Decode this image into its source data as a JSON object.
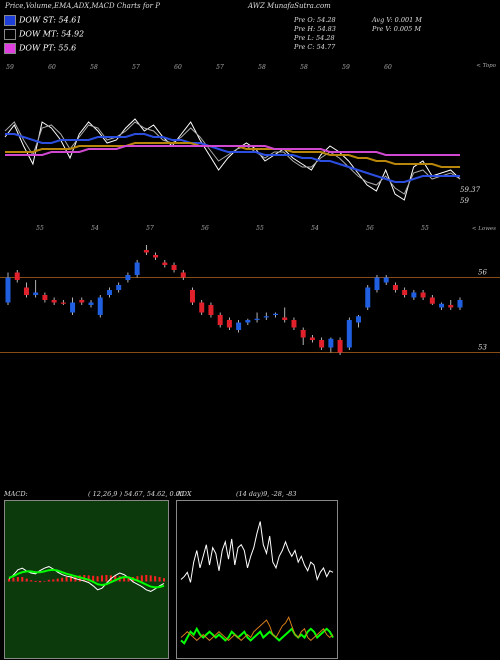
{
  "header": {
    "left": "Price,Volume,EMA,ADX,MACD Charts for P",
    "right": "AWZ MunafaSutra.com"
  },
  "indicators": [
    {
      "label": "DOW ST: 54.61",
      "color": "#1e3fd8"
    },
    {
      "label": "DOW MT: 54.92",
      "color": "#000000"
    },
    {
      "label": "DOW PT: 55.6",
      "color": "#e040e0"
    }
  ],
  "quote": {
    "prev_open": "Pre O: 54.28",
    "prev_high": "Pre H: 54.83",
    "prev_low": "Pre L: 54.28",
    "prev_close": "Pre C: 54.77",
    "avg_vol": "Avg V: 0.001 M",
    "prev_vol": "Pre V: 0.005 M"
  },
  "chart_data": [
    {
      "type": "line",
      "name": "price-ema",
      "ylim": [
        58.5,
        62.5
      ],
      "y_labels": [
        {
          "text": "59.37",
          "value": 59.37
        },
        {
          "text": "59",
          "value": 59.0
        }
      ],
      "corner_label": "< Topo",
      "top_tick_labels": [
        "59",
        "60",
        "58",
        "57",
        "60",
        "57",
        "58",
        "58",
        "59",
        "60"
      ],
      "series": [
        {
          "color": "#ffffff",
          "values": [
            61.1,
            61.5,
            60.8,
            60.2,
            61.6,
            61.4,
            61.0,
            60.4,
            61.2,
            61.6,
            61.3,
            60.9,
            61.0,
            61.4,
            61.7,
            61.3,
            61.5,
            61.1,
            60.8,
            61.2,
            61.6,
            61.0,
            60.5,
            60.0,
            60.4,
            60.7,
            60.9,
            60.7,
            60.3,
            60.5,
            60.7,
            60.4,
            60.2,
            60.0,
            60.5,
            60.8,
            60.6,
            60.3,
            59.9,
            59.5,
            59.3,
            60.0,
            59.2,
            59.0,
            60.1,
            60.3,
            59.8,
            59.9,
            60.0,
            59.7
          ]
        },
        {
          "color": "#aaaaaa",
          "values": [
            61.3,
            61.6,
            61.0,
            60.5,
            61.4,
            61.5,
            61.2,
            60.7,
            61.1,
            61.5,
            61.4,
            61.0,
            61.1,
            61.3,
            61.6,
            61.4,
            61.3,
            61.0,
            60.9,
            61.1,
            61.4,
            61.1,
            60.7,
            60.3,
            60.5,
            60.7,
            60.8,
            60.6,
            60.4,
            60.6,
            60.6,
            60.3,
            60.1,
            60.1,
            60.4,
            60.6,
            60.4,
            60.1,
            59.8,
            59.6,
            59.5,
            59.8,
            59.4,
            59.2,
            59.9,
            60.0,
            59.7,
            59.8,
            59.9,
            59.7
          ]
        },
        {
          "color": "#2b4de0",
          "values": [
            61.2,
            61.2,
            61.1,
            61.0,
            60.9,
            60.9,
            61.0,
            61.0,
            61.0,
            61.0,
            61.1,
            61.1,
            61.1,
            61.1,
            61.2,
            61.2,
            61.1,
            61.1,
            61.0,
            61.0,
            60.9,
            60.9,
            60.8,
            60.7,
            60.6,
            60.6,
            60.6,
            60.6,
            60.5,
            60.5,
            60.5,
            60.5,
            60.4,
            60.4,
            60.3,
            60.3,
            60.2,
            60.1,
            60.0,
            59.9,
            59.8,
            59.7,
            59.6,
            59.6,
            59.7,
            59.8,
            59.8,
            59.8,
            59.8,
            59.8
          ]
        },
        {
          "color": "#b8860b",
          "values": [
            60.6,
            60.6,
            60.6,
            60.6,
            60.7,
            60.7,
            60.7,
            60.7,
            60.8,
            60.8,
            60.8,
            60.8,
            60.8,
            60.8,
            60.9,
            60.9,
            60.9,
            60.9,
            60.9,
            60.9,
            60.9,
            60.8,
            60.8,
            60.8,
            60.8,
            60.8,
            60.7,
            60.7,
            60.7,
            60.7,
            60.7,
            60.6,
            60.6,
            60.6,
            60.6,
            60.5,
            60.5,
            60.5,
            60.4,
            60.4,
            60.3,
            60.3,
            60.2,
            60.2,
            60.2,
            60.2,
            60.2,
            60.1,
            60.1,
            60.1
          ]
        },
        {
          "color": "#d048d0",
          "values": [
            60.5,
            60.5,
            60.5,
            60.5,
            60.5,
            60.6,
            60.6,
            60.6,
            60.6,
            60.7,
            60.7,
            60.7,
            60.7,
            60.8,
            60.8,
            60.8,
            60.8,
            60.8,
            60.8,
            60.8,
            60.8,
            60.8,
            60.8,
            60.8,
            60.8,
            60.8,
            60.8,
            60.8,
            60.8,
            60.7,
            60.7,
            60.7,
            60.7,
            60.7,
            60.7,
            60.6,
            60.6,
            60.6,
            60.6,
            60.6,
            60.6,
            60.5,
            60.5,
            60.5,
            60.5,
            60.5,
            60.5,
            60.5,
            60.5,
            60.5
          ]
        }
      ]
    },
    {
      "type": "candlestick",
      "name": "price-candles",
      "ylim": [
        52.5,
        57.5
      ],
      "y_labels": [
        {
          "text": "56",
          "value": 56.0
        },
        {
          "text": "53",
          "value": 53.0
        }
      ],
      "corner_label": "< Lowes",
      "top_tick_labels": [
        "55",
        "54",
        "57",
        "56",
        "55",
        "54",
        "56",
        "55"
      ],
      "candles": [
        {
          "o": 55.0,
          "c": 56.0,
          "h": 56.2,
          "l": 54.9
        },
        {
          "o": 56.2,
          "c": 55.9,
          "h": 56.3,
          "l": 55.8
        },
        {
          "o": 55.6,
          "c": 55.3,
          "h": 55.8,
          "l": 55.2
        },
        {
          "o": 55.3,
          "c": 55.4,
          "h": 55.9,
          "l": 55.2
        },
        {
          "o": 55.3,
          "c": 55.1,
          "h": 55.4,
          "l": 55.0
        },
        {
          "o": 55.1,
          "c": 55.0,
          "h": 55.2,
          "l": 54.9
        },
        {
          "o": 55.0,
          "c": 54.95,
          "h": 55.1,
          "l": 54.9
        },
        {
          "o": 54.6,
          "c": 55.0,
          "h": 55.2,
          "l": 54.5
        },
        {
          "o": 55.1,
          "c": 55.0,
          "h": 55.2,
          "l": 54.9
        },
        {
          "o": 54.9,
          "c": 55.0,
          "h": 55.1,
          "l": 54.8
        },
        {
          "o": 54.5,
          "c": 55.2,
          "h": 55.3,
          "l": 54.4
        },
        {
          "o": 55.3,
          "c": 55.5,
          "h": 55.6,
          "l": 55.2
        },
        {
          "o": 55.5,
          "c": 55.7,
          "h": 55.8,
          "l": 55.4
        },
        {
          "o": 55.9,
          "c": 56.1,
          "h": 56.2,
          "l": 55.8
        },
        {
          "o": 56.1,
          "c": 56.6,
          "h": 56.7,
          "l": 56.0
        },
        {
          "o": 57.1,
          "c": 57.0,
          "h": 57.3,
          "l": 56.9
        },
        {
          "o": 56.9,
          "c": 56.8,
          "h": 57.0,
          "l": 56.7
        },
        {
          "o": 56.6,
          "c": 56.5,
          "h": 56.7,
          "l": 56.4
        },
        {
          "o": 56.5,
          "c": 56.3,
          "h": 56.6,
          "l": 56.2
        },
        {
          "o": 56.2,
          "c": 56.0,
          "h": 56.3,
          "l": 55.9
        },
        {
          "o": 55.5,
          "c": 55.0,
          "h": 55.6,
          "l": 54.9
        },
        {
          "o": 55.0,
          "c": 54.6,
          "h": 55.1,
          "l": 54.5
        },
        {
          "o": 54.9,
          "c": 54.5,
          "h": 55.0,
          "l": 54.4
        },
        {
          "o": 54.5,
          "c": 54.1,
          "h": 54.6,
          "l": 54.0
        },
        {
          "o": 54.3,
          "c": 54.0,
          "h": 54.4,
          "l": 53.9
        },
        {
          "o": 53.9,
          "c": 54.2,
          "h": 54.3,
          "l": 53.8
        },
        {
          "o": 54.2,
          "c": 54.3,
          "h": 54.35,
          "l": 54.1
        },
        {
          "o": 54.3,
          "c": 54.35,
          "h": 54.6,
          "l": 54.2
        },
        {
          "o": 54.4,
          "c": 54.45,
          "h": 54.6,
          "l": 54.3
        },
        {
          "o": 54.5,
          "c": 54.55,
          "h": 54.6,
          "l": 54.4
        },
        {
          "o": 54.4,
          "c": 54.3,
          "h": 54.8,
          "l": 54.2
        },
        {
          "o": 54.3,
          "c": 54.0,
          "h": 54.4,
          "l": 53.9
        },
        {
          "o": 53.9,
          "c": 53.6,
          "h": 54.0,
          "l": 53.3
        },
        {
          "o": 53.6,
          "c": 53.5,
          "h": 53.7,
          "l": 53.4
        },
        {
          "o": 53.5,
          "c": 53.2,
          "h": 53.6,
          "l": 53.1
        },
        {
          "o": 53.2,
          "c": 53.55,
          "h": 53.6,
          "l": 53.0
        },
        {
          "o": 53.5,
          "c": 53.0,
          "h": 53.6,
          "l": 52.9
        },
        {
          "o": 53.2,
          "c": 54.3,
          "h": 54.4,
          "l": 53.1
        },
        {
          "o": 54.2,
          "c": 54.45,
          "h": 54.5,
          "l": 54.0
        },
        {
          "o": 54.8,
          "c": 55.6,
          "h": 55.7,
          "l": 54.7
        },
        {
          "o": 55.5,
          "c": 56.0,
          "h": 56.1,
          "l": 55.4
        },
        {
          "o": 55.8,
          "c": 56.0,
          "h": 56.1,
          "l": 55.7
        },
        {
          "o": 55.7,
          "c": 55.5,
          "h": 55.8,
          "l": 55.4
        },
        {
          "o": 55.5,
          "c": 55.3,
          "h": 55.6,
          "l": 55.2
        },
        {
          "o": 55.2,
          "c": 55.4,
          "h": 55.5,
          "l": 55.1
        },
        {
          "o": 55.4,
          "c": 55.2,
          "h": 55.5,
          "l": 55.1
        },
        {
          "o": 55.2,
          "c": 54.95,
          "h": 55.3,
          "l": 54.9
        },
        {
          "o": 54.8,
          "c": 54.95,
          "h": 55.0,
          "l": 54.7
        },
        {
          "o": 54.9,
          "c": 54.8,
          "h": 55.1,
          "l": 54.7
        },
        {
          "o": 54.8,
          "c": 55.1,
          "h": 55.2,
          "l": 54.7
        }
      ]
    },
    {
      "type": "bar",
      "name": "macd",
      "title": "MACD:",
      "params": "( 12,26,9 ) 54.67,  54.62,  0.05",
      "ylim": [
        -1,
        1
      ],
      "series": [
        {
          "color": "#ffffff",
          "values": [
            0.05,
            0.15,
            0.28,
            0.32,
            0.25,
            0.2,
            0.18,
            0.26,
            0.32,
            0.36,
            0.3,
            0.22,
            0.16,
            0.12,
            0.1,
            0.06,
            0.03,
            0.0,
            -0.04,
            -0.12,
            -0.22,
            -0.18,
            -0.06,
            0.06,
            0.14,
            0.2,
            0.16,
            0.08,
            -0.02,
            -0.08,
            -0.14,
            -0.22,
            -0.26,
            -0.2,
            -0.12,
            -0.06
          ]
        },
        {
          "color": "#00ff00",
          "values": [
            0.08,
            0.12,
            0.18,
            0.22,
            0.24,
            0.24,
            0.22,
            0.22,
            0.24,
            0.27,
            0.28,
            0.26,
            0.22,
            0.18,
            0.15,
            0.12,
            0.09,
            0.06,
            0.03,
            -0.02,
            -0.08,
            -0.1,
            -0.08,
            -0.03,
            0.02,
            0.07,
            0.1,
            0.09,
            0.05,
            0.01,
            -0.04,
            -0.09,
            -0.14,
            -0.16,
            -0.15,
            -0.12
          ]
        },
        {
          "color": "#ff2020",
          "values": [
            0.05,
            0.08,
            0.1,
            0.1,
            0.06,
            0.02,
            -0.01,
            -0.02,
            0.0,
            0.03,
            0.04,
            0.06,
            0.08,
            0.1,
            0.12,
            0.13,
            0.14,
            0.15,
            0.14,
            0.13,
            0.12,
            0.14,
            0.15,
            0.14,
            0.13,
            0.12,
            0.11,
            0.1,
            0.1,
            0.12,
            0.14,
            0.15,
            0.14,
            0.12,
            0.1,
            0.07
          ]
        }
      ]
    },
    {
      "type": "line",
      "name": "adx",
      "title": "ADX",
      "params": "(14 day)9, -28, -83",
      "ylim": [
        0,
        100
      ],
      "series": [
        {
          "color": "#ffffff",
          "values": [
            50,
            52,
            55,
            48,
            62,
            70,
            58,
            66,
            74,
            60,
            72,
            68,
            56,
            70,
            76,
            64,
            78,
            60,
            72,
            74,
            70,
            58,
            66,
            72,
            82,
            90,
            74,
            68,
            80,
            62,
            58,
            66,
            70,
            76,
            70,
            66,
            70,
            62,
            66,
            60,
            56,
            62,
            60,
            50,
            55,
            58,
            52,
            56,
            55
          ]
        },
        {
          "color": "#00ff00",
          "values": [
            8,
            6,
            10,
            14,
            12,
            16,
            12,
            10,
            12,
            14,
            12,
            10,
            12,
            10,
            8,
            10,
            14,
            12,
            10,
            12,
            14,
            10,
            8,
            10,
            12,
            14,
            10,
            12,
            14,
            12,
            10,
            8,
            10,
            12,
            14,
            16,
            12,
            10,
            12,
            10,
            14,
            16,
            14,
            10,
            12,
            14,
            16,
            14,
            10
          ]
        },
        {
          "color": "#d27b1a",
          "values": [
            10,
            12,
            14,
            12,
            10,
            8,
            10,
            12,
            10,
            8,
            10,
            12,
            14,
            12,
            10,
            8,
            10,
            12,
            10,
            8,
            10,
            12,
            10,
            14,
            16,
            18,
            20,
            22,
            18,
            12,
            10,
            14,
            18,
            20,
            24,
            18,
            12,
            10,
            14,
            16,
            10,
            8,
            10,
            12,
            14,
            16,
            12,
            10,
            12
          ]
        }
      ]
    }
  ]
}
